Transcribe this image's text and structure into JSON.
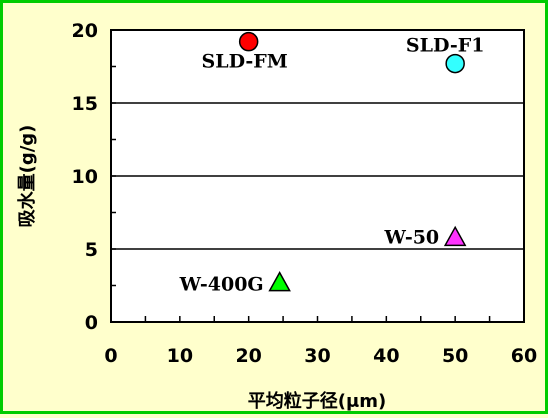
{
  "chart_data": {
    "type": "scatter",
    "xlabel": "平均粒子径(μm)",
    "ylabel": "吸水量(g/g)",
    "xlim": [
      0,
      60
    ],
    "ylim": [
      0,
      20
    ],
    "x_ticks": [
      "0",
      "10",
      "20",
      "30",
      "40",
      "50",
      "60"
    ],
    "y_ticks": [
      "0",
      "5",
      "10",
      "15",
      "20"
    ],
    "grid": "horizontal",
    "background": "#ffffcc",
    "border_color": "#00cc00",
    "points": [
      {
        "label": "SLD-FM",
        "x": 20,
        "y": 19.2,
        "marker": "circle",
        "color": "#ff0000"
      },
      {
        "label": "SLD-F1",
        "x": 50,
        "y": 17.7,
        "marker": "circle",
        "color": "#33ffff"
      },
      {
        "label": "W-50",
        "x": 50,
        "y": 5.8,
        "marker": "triangle",
        "color": "#ff33ff"
      },
      {
        "label": "W-400G",
        "x": 24.5,
        "y": 2.7,
        "marker": "triangle",
        "color": "#00ff00"
      }
    ]
  }
}
